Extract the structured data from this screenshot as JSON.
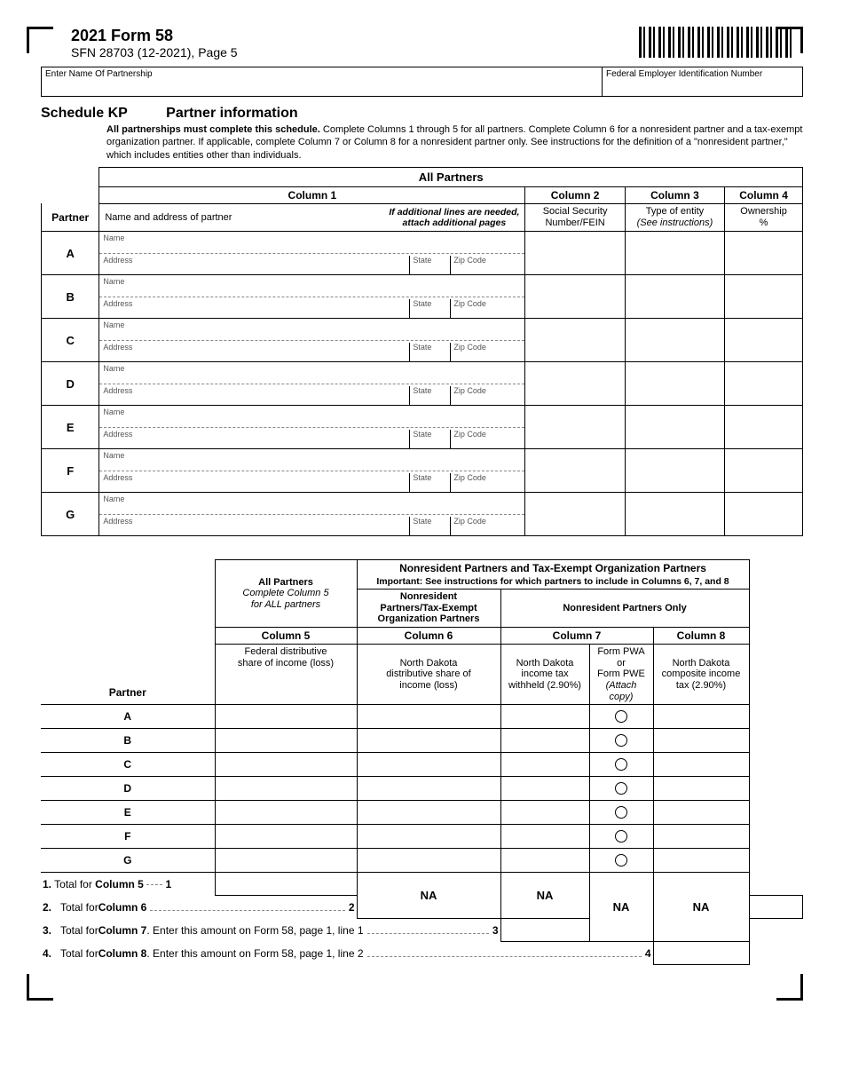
{
  "header": {
    "form_title": "2021 Form 58",
    "form_sub": "SFN 28703 (12-2021), Page 5"
  },
  "top_fields": {
    "partnership_label": "Enter Name Of Partnership",
    "fein_label": "Federal Employer Identification Number"
  },
  "schedule": {
    "code": "Schedule KP",
    "title": "Partner information",
    "desc_bold": "All partnerships must complete this schedule.",
    "desc_rest": " Complete Columns 1 through 5 for all partners. Complete Column 6 for a nonresident partner and a tax-exempt organization partner. If applicable, complete Column 7 or Column 8 for a nonresident partner only. See instructions for the definition of a \"nonresident partner,\" which includes entities other than individuals."
  },
  "table1": {
    "all_partners": "All Partners",
    "partner_label": "Partner",
    "col1": "Column 1",
    "col2": "Column 2",
    "col3": "Column 3",
    "col4": "Column 4",
    "col1_desc": "Name and address of partner",
    "col1_note1": "If additional lines are needed,",
    "col1_note2": "attach additional pages",
    "col2_desc1": "Social Security",
    "col2_desc2": "Number/FEIN",
    "col3_desc1": "Type of entity",
    "col3_desc2": "(See instructions)",
    "col4_desc1": "Ownership",
    "col4_desc2": "%",
    "name_lbl": "Name",
    "addr_lbl": "Address",
    "state_lbl": "State",
    "zip_lbl": "Zip Code",
    "rows": [
      "A",
      "B",
      "C",
      "D",
      "E",
      "F",
      "G"
    ]
  },
  "table2": {
    "banner_bold": "Nonresident Partners and Tax-Exempt Organization Partners",
    "banner_sub": "Important: See instructions for which partners to include in Columns 6, 7, and 8",
    "grp1_l1": "All Partners",
    "grp1_l2": "Complete Column 5",
    "grp1_l3": "for ALL partners",
    "grp2_l1": "Nonresident",
    "grp2_l2": "Partners/Tax-Exempt",
    "grp2_l3": "Organization Partners",
    "grp3": "Nonresident Partners Only",
    "col5": "Column 5",
    "col6": "Column 6",
    "col7": "Column 7",
    "col8": "Column 8",
    "c5_l1": "Federal distributive",
    "c5_l2": "share of income (loss)",
    "c6_l1": "North Dakota",
    "c6_l2": "distributive share of",
    "c6_l3": "income (loss)",
    "c7a_l1": "North Dakota",
    "c7a_l2": "income tax",
    "c7a_l3": "withheld (2.90%)",
    "c7b_l1": "Form PWA or",
    "c7b_l2": "Form PWE",
    "c7b_l3": "(Attach copy)",
    "c8_l1": "North Dakota",
    "c8_l2": "composite income",
    "c8_l3": "tax (2.90%)",
    "partner_label": "Partner",
    "rows": [
      "A",
      "B",
      "C",
      "D",
      "E",
      "F",
      "G"
    ],
    "na": "NA"
  },
  "totals": {
    "t1_num": "1.",
    "t1_txt_a": "Total for ",
    "t1_txt_b": "Column 5",
    "t1_marker": "1",
    "t2_num": "2.",
    "t2_txt_a": "Total for ",
    "t2_txt_b": "Column 6",
    "t2_marker": "2",
    "t3_num": "3.",
    "t3_txt_a": "Total for ",
    "t3_txt_b": "Column 7",
    "t3_txt_c": ". Enter this amount on Form 58, page 1, line 1",
    "t3_marker": "3",
    "t4_num": "4.",
    "t4_txt_a": "Total for ",
    "t4_txt_b": "Column 8",
    "t4_txt_c": ". Enter this amount on Form 58, page 1, line 2",
    "t4_marker": "4"
  }
}
